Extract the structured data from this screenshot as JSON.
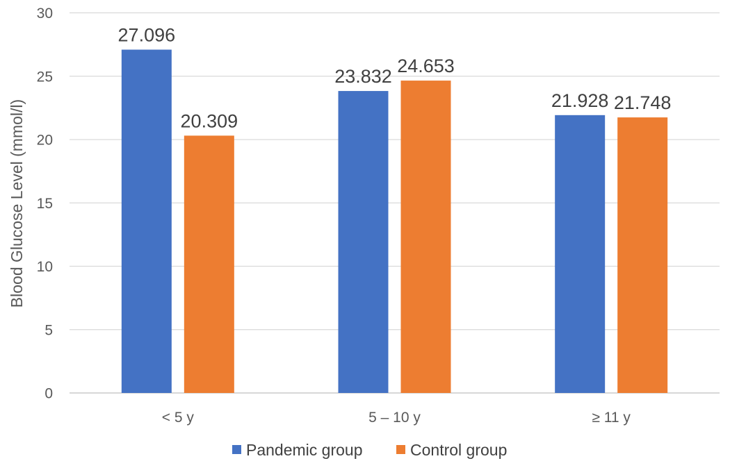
{
  "chart_data": {
    "type": "bar",
    "title": "",
    "xlabel": "",
    "ylabel": "Blood Glucose Level (mmol/l)",
    "categories": [
      "< 5 y",
      "5 – 10 y",
      "≥ 11 y"
    ],
    "series": [
      {
        "name": "Pandemic group",
        "color": "#4472c4",
        "values": [
          27.096,
          23.832,
          21.928
        ]
      },
      {
        "name": "Control group",
        "color": "#ed7d31",
        "values": [
          20.309,
          24.653,
          21.748
        ]
      }
    ],
    "data_labels": [
      [
        "27.096",
        "23.832",
        "21.928"
      ],
      [
        "20.309",
        "24.653",
        "21.748"
      ]
    ],
    "ylim": [
      0,
      30
    ],
    "yticks": [
      0,
      5,
      10,
      15,
      20,
      25,
      30
    ],
    "grid": true,
    "legend": "bottom-center"
  }
}
